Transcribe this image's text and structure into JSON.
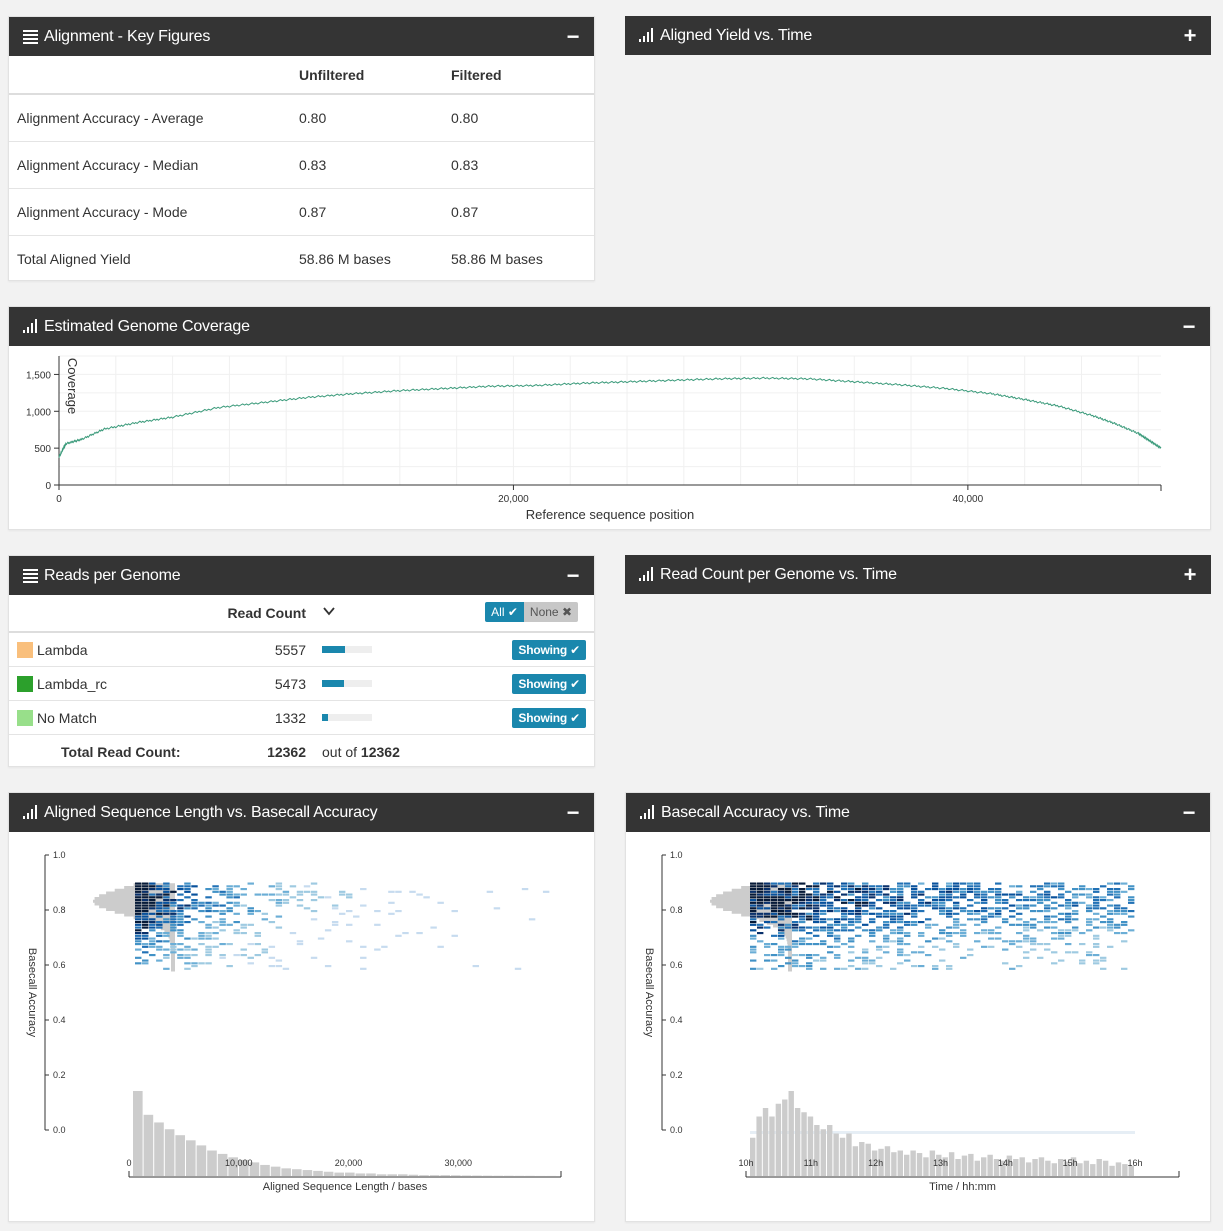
{
  "panels": {
    "key_figures": {
      "title": "Alignment - Key Figures",
      "toggle": "−",
      "columns": [
        "",
        "Unfiltered",
        "Filtered"
      ],
      "rows": [
        {
          "label": "Alignment Accuracy - Average",
          "unfiltered": "0.80",
          "filtered": "0.80"
        },
        {
          "label": "Alignment Accuracy - Median",
          "unfiltered": "0.83",
          "filtered": "0.83"
        },
        {
          "label": "Alignment Accuracy - Mode",
          "unfiltered": "0.87",
          "filtered": "0.87"
        },
        {
          "label": "Total Aligned Yield",
          "unfiltered": "58.86 M bases",
          "filtered": "58.86 M bases"
        }
      ]
    },
    "aligned_yield": {
      "title": "Aligned Yield vs. Time",
      "toggle": "+"
    },
    "coverage": {
      "title": "Estimated Genome Coverage",
      "toggle": "−"
    },
    "reads_per_genome": {
      "title": "Reads per Genome",
      "toggle": "−",
      "col_read_count": "Read Count",
      "all_label": "All",
      "none_label": "None",
      "genomes": [
        {
          "name": "Lambda",
          "count": "5557",
          "fraction": 0.45,
          "color": "#f9bf7c",
          "status": "Showing"
        },
        {
          "name": "Lambda_rc",
          "count": "5473",
          "fraction": 0.44,
          "color": "#2ca02c",
          "status": "Showing"
        },
        {
          "name": "No Match",
          "count": "1332",
          "fraction": 0.11,
          "color": "#98df8a",
          "status": "Showing"
        }
      ],
      "total_label": "Total Read Count:",
      "total_value": "12362",
      "out_of_label": "out of",
      "out_of_value": "12362"
    },
    "read_count_time": {
      "title": "Read Count per Genome vs. Time",
      "toggle": "+"
    },
    "length_accuracy": {
      "title": "Aligned Sequence Length vs. Basecall Accuracy",
      "toggle": "−"
    },
    "accuracy_time": {
      "title": "Basecall Accuracy vs. Time",
      "toggle": "−"
    }
  },
  "colors": {
    "header": "#343434",
    "accent": "#1a87ad",
    "line": "#3a9a7a",
    "hist": "#cccccc"
  },
  "chart_data": [
    {
      "type": "line",
      "title": "",
      "xlabel": "Reference sequence position",
      "ylabel": "Coverage",
      "xlim": [
        0,
        48500
      ],
      "ylim": [
        0,
        1750
      ],
      "xticks": [
        0,
        20000,
        40000
      ],
      "xtick_labels": [
        "0",
        "20,000",
        "40,000"
      ],
      "yticks": [
        0,
        500,
        1000,
        1500
      ],
      "ytick_labels": [
        "0",
        "500",
        "1,000",
        "1,500"
      ],
      "grid": true,
      "series": [
        {
          "x": [
            0,
            300,
            1000,
            2000,
            3500,
            5000,
            7000,
            9000,
            11000,
            13000,
            15000,
            17000,
            19000,
            21000,
            23000,
            25000,
            27000,
            29000,
            31000,
            33000,
            35000,
            37000,
            39000,
            41000,
            42500,
            44000,
            45500,
            46500,
            47500,
            48000,
            48500
          ],
          "y": [
            380,
            560,
            620,
            760,
            850,
            920,
            1050,
            1120,
            1190,
            1240,
            1280,
            1310,
            1340,
            1350,
            1380,
            1400,
            1420,
            1440,
            1450,
            1440,
            1400,
            1360,
            1310,
            1240,
            1160,
            1070,
            940,
            830,
            700,
            600,
            500
          ]
        }
      ]
    },
    {
      "type": "heatmap",
      "title": "",
      "xlabel": "Aligned Sequence Length / bases",
      "ylabel": "Basecall Accuracy",
      "xlim": [
        0,
        39000
      ],
      "ylim": [
        0,
        1
      ],
      "xticks": [
        0,
        10000,
        20000,
        30000
      ],
      "xtick_labels": [
        "0",
        "10,000",
        "20,000",
        "30,000"
      ],
      "yticks": [
        0,
        0.2,
        0.4,
        0.6,
        0.8,
        1.0
      ],
      "ytick_labels": [
        "0.0",
        "0.2",
        "0.4",
        "0.6",
        "0.8",
        "1.0"
      ],
      "accuracy_range": [
        0.58,
        0.9
      ],
      "density_peak": {
        "x": 1500,
        "y": 0.83
      },
      "length_histogram": [
        1,
        0.72,
        0.63,
        0.55,
        0.48,
        0.42,
        0.36,
        0.3,
        0.26,
        0.22,
        0.19,
        0.16,
        0.13,
        0.11,
        0.09,
        0.08,
        0.07,
        0.06,
        0.05,
        0.04,
        0.04,
        0.03,
        0.03,
        0.02,
        0.02,
        0.02,
        0.015,
        0.01,
        0.01,
        0.01,
        0.008,
        0.006,
        0.005,
        0.004,
        0.003,
        0.003,
        0.002,
        0.002,
        0.001,
        0.001
      ]
    },
    {
      "type": "heatmap",
      "title": "",
      "xlabel": "Time / hh:mm",
      "ylabel": "Basecall Accuracy",
      "xlim": [
        10,
        16
      ],
      "ylim": [
        0,
        1
      ],
      "xticks": [
        10,
        11,
        12,
        13,
        14,
        15,
        16
      ],
      "xtick_labels": [
        "10h",
        "11h",
        "12h",
        "13h",
        "14h",
        "15h",
        "16h"
      ],
      "yticks": [
        0,
        0.2,
        0.4,
        0.6,
        0.8,
        1.0
      ],
      "ytick_labels": [
        "0.0",
        "0.2",
        "0.4",
        "0.6",
        "0.8",
        "1.0"
      ],
      "accuracy_range": [
        0.58,
        0.9
      ],
      "density_peak": {
        "x": 10.7,
        "y": 0.83
      },
      "time_histogram": [
        0.45,
        0.7,
        0.8,
        0.7,
        0.85,
        0.9,
        1.0,
        0.8,
        0.75,
        0.7,
        0.6,
        0.55,
        0.6,
        0.5,
        0.45,
        0.5,
        0.35,
        0.4,
        0.38,
        0.3,
        0.32,
        0.35,
        0.28,
        0.3,
        0.25,
        0.3,
        0.27,
        0.22,
        0.3,
        0.25,
        0.22,
        0.28,
        0.2,
        0.24,
        0.26,
        0.18,
        0.22,
        0.25,
        0.2,
        0.18,
        0.24,
        0.2,
        0.22,
        0.16,
        0.2,
        0.22,
        0.18,
        0.15,
        0.2,
        0.17,
        0.22,
        0.15,
        0.18,
        0.14,
        0.2,
        0.18,
        0.12,
        0.16,
        0.14,
        0.12
      ]
    }
  ]
}
